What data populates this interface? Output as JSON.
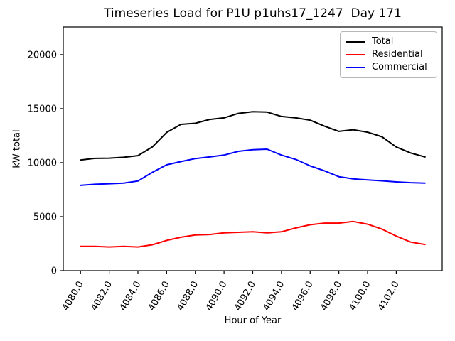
{
  "chart_data": {
    "type": "line",
    "title": "Timeseries Load for P1U p1uhs17_1247  Day 171",
    "xlabel": "Hour of Year",
    "ylabel": "kW total",
    "grid": false,
    "legend_position": "upper right",
    "xlim": [
      4078.8,
      4105.2
    ],
    "ylim": [
      0,
      22560
    ],
    "x": [
      4080,
      4081,
      4082,
      4083,
      4084,
      4085,
      4086,
      4087,
      4088,
      4089,
      4090,
      4091,
      4092,
      4093,
      4094,
      4095,
      4096,
      4097,
      4098,
      4099,
      4100,
      4101,
      4102,
      4103,
      4104
    ],
    "series": [
      {
        "name": "Total",
        "color": "#000000",
        "values": [
          10250,
          10400,
          10420,
          10500,
          10650,
          11450,
          12800,
          13550,
          13650,
          14000,
          14150,
          14560,
          14720,
          14680,
          14280,
          14150,
          13930,
          13380,
          12900,
          13050,
          12820,
          12400,
          11450,
          10900,
          10530
        ]
      },
      {
        "name": "Residential",
        "color": "#ff0000",
        "values": [
          2250,
          2250,
          2200,
          2250,
          2200,
          2400,
          2800,
          3100,
          3300,
          3350,
          3500,
          3550,
          3600,
          3500,
          3600,
          3950,
          4250,
          4400,
          4400,
          4550,
          4300,
          3850,
          3200,
          2650,
          2430
        ]
      },
      {
        "name": "Commercial",
        "color": "#0000ff",
        "values": [
          7900,
          8000,
          8050,
          8100,
          8300,
          9100,
          9800,
          10100,
          10380,
          10530,
          10700,
          11050,
          11200,
          11250,
          10700,
          10300,
          9700,
          9250,
          8700,
          8500,
          8400,
          8320,
          8220,
          8150,
          8110
        ]
      }
    ],
    "xticks": {
      "values": [
        4080,
        4082,
        4084,
        4086,
        4088,
        4090,
        4092,
        4094,
        4096,
        4098,
        4100,
        4102
      ],
      "labels": [
        "4080.0",
        "4082.0",
        "4084.0",
        "4086.0",
        "4088.0",
        "4090.0",
        "4092.0",
        "4094.0",
        "4096.0",
        "4098.0",
        "4100.0",
        "4102.0"
      ]
    },
    "yticks": {
      "values": [
        0,
        5000,
        10000,
        15000,
        20000
      ],
      "labels": [
        "0",
        "5000",
        "10000",
        "15000",
        "20000"
      ]
    }
  }
}
